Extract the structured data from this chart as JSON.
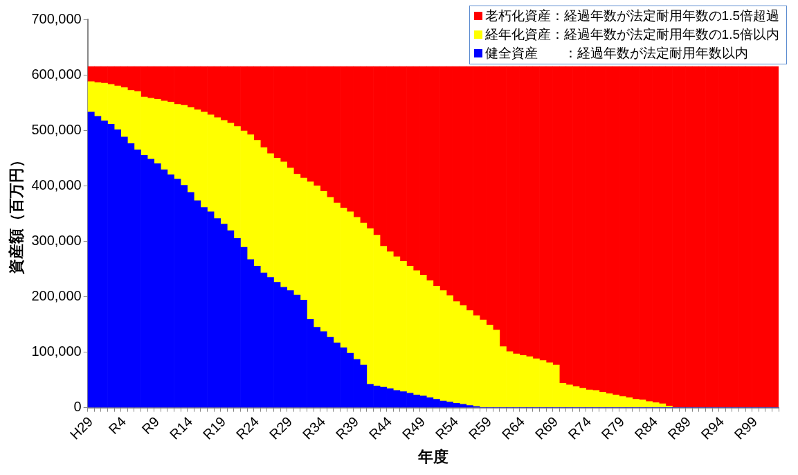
{
  "chart_data": {
    "type": "bar",
    "stacked": true,
    "xlabel": "年度",
    "ylabel": "資産額（百万円）",
    "ylim": [
      0,
      700000
    ],
    "yticks": [
      0,
      {
        "value": 100000,
        "label": "100,000"
      },
      {
        "value": 200000,
        "label": "200,000"
      },
      {
        "value": 300000,
        "label": "300,000"
      },
      {
        "value": 400000,
        "label": "400,000"
      },
      {
        "value": 500000,
        "label": "500,000"
      },
      {
        "value": 600000,
        "label": "600,000"
      },
      {
        "value": 700000,
        "label": "700,000"
      }
    ],
    "grid": false,
    "legend": "top right",
    "categories": [
      "H29",
      null,
      null,
      null,
      null,
      "R4",
      null,
      null,
      null,
      null,
      "R9",
      null,
      null,
      null,
      null,
      "R14",
      null,
      null,
      null,
      null,
      "R19",
      null,
      null,
      null,
      null,
      "R24",
      null,
      null,
      null,
      null,
      "R29",
      null,
      null,
      null,
      null,
      "R34",
      null,
      null,
      null,
      null,
      "R39",
      null,
      null,
      null,
      null,
      "R44",
      null,
      null,
      null,
      null,
      "R49",
      null,
      null,
      null,
      null,
      "R54",
      null,
      null,
      null,
      null,
      "R59",
      null,
      null,
      null,
      null,
      "R64",
      null,
      null,
      null,
      null,
      "R69",
      null,
      null,
      null,
      null,
      "R74",
      null,
      null,
      null,
      null,
      "R79",
      null,
      null,
      null,
      null,
      "R84",
      null,
      null,
      null,
      null,
      "R89",
      null,
      null,
      null,
      null,
      "R94",
      null,
      null,
      null,
      null,
      "R99",
      null,
      null,
      null
    ],
    "series": [
      {
        "name": "健全資産　　：経過年数が法定耐用年数以内",
        "color": "#0000ff",
        "values": [
          533000,
          525000,
          517000,
          511000,
          501000,
          488000,
          476000,
          465000,
          455000,
          448000,
          440000,
          429000,
          420000,
          412000,
          401000,
          388000,
          373000,
          361000,
          353000,
          341000,
          331000,
          319000,
          305000,
          289000,
          267000,
          255000,
          243000,
          235000,
          226000,
          217000,
          211000,
          203000,
          194000,
          159000,
          145000,
          137000,
          127000,
          117000,
          108000,
          98000,
          87000,
          77000,
          42000,
          39000,
          37000,
          34000,
          31000,
          29000,
          26000,
          23000,
          21000,
          18000,
          15000,
          12000,
          10000,
          8000,
          6000,
          4000,
          2000,
          0,
          0,
          0,
          0,
          0,
          0,
          0,
          0,
          0,
          0,
          0,
          0,
          0,
          0,
          0,
          0,
          0,
          0,
          0,
          0,
          0,
          0,
          0,
          0,
          0,
          0,
          0,
          0,
          0,
          0,
          0,
          0,
          0,
          0,
          0,
          0,
          0,
          0,
          0,
          0,
          0,
          0,
          0,
          0,
          0
        ]
      },
      {
        "name": "経年化資産：経過年数が法定耐用年数の1.5倍以内",
        "color": "#ffff00",
        "values": [
          55000,
          61000,
          68000,
          72000,
          79000,
          89000,
          96000,
          105000,
          105000,
          110000,
          116000,
          124000,
          131000,
          135000,
          144000,
          153000,
          164000,
          172000,
          175000,
          182000,
          187000,
          194000,
          202000,
          210000,
          225000,
          227000,
          226000,
          223000,
          224000,
          226000,
          221000,
          218000,
          220000,
          248000,
          255000,
          253000,
          252000,
          252000,
          252000,
          255000,
          256000,
          256000,
          281000,
          272000,
          254000,
          247000,
          241000,
          235000,
          229000,
          224000,
          218000,
          211000,
          204000,
          199000,
          192000,
          183000,
          178000,
          171000,
          164000,
          158000,
          149000,
          140000,
          110000,
          101000,
          97000,
          94000,
          92000,
          88000,
          85000,
          81000,
          77000,
          44000,
          41000,
          38000,
          35000,
          32000,
          31000,
          28000,
          25000,
          23000,
          20000,
          18000,
          15000,
          14000,
          11000,
          9000,
          7000,
          3000,
          0,
          0,
          0,
          0,
          0,
          0,
          0,
          0,
          0,
          0,
          0,
          0,
          0,
          0,
          0,
          0
        ]
      },
      {
        "name": "老朽化資産：経過年数が法定耐用年数の1.5倍超過",
        "color": "#ff0000",
        "values": [
          27000,
          29000,
          30000,
          32000,
          35000,
          38000,
          43000,
          45000,
          55000,
          57000,
          59000,
          62000,
          64000,
          68000,
          70000,
          74000,
          78000,
          82000,
          87000,
          92000,
          97000,
          102000,
          108000,
          116000,
          123000,
          133000,
          146000,
          157000,
          165000,
          172000,
          183000,
          194000,
          201000,
          208000,
          215000,
          225000,
          236000,
          246000,
          255000,
          262000,
          272000,
          282000,
          292000,
          304000,
          324000,
          334000,
          343000,
          351000,
          360000,
          368000,
          376000,
          386000,
          396000,
          404000,
          413000,
          424000,
          431000,
          440000,
          449000,
          457000,
          466000,
          475000,
          505000,
          514000,
          518000,
          521000,
          523000,
          527000,
          530000,
          534000,
          538000,
          571000,
          574000,
          577000,
          580000,
          583000,
          584000,
          587000,
          590000,
          592000,
          595000,
          597000,
          600000,
          601000,
          604000,
          606000,
          608000,
          612000,
          615000,
          615000,
          615000,
          615000,
          615000,
          615000,
          615000,
          615000,
          615000,
          615000,
          615000,
          615000,
          615000,
          615000,
          615000,
          615000
        ]
      }
    ]
  }
}
